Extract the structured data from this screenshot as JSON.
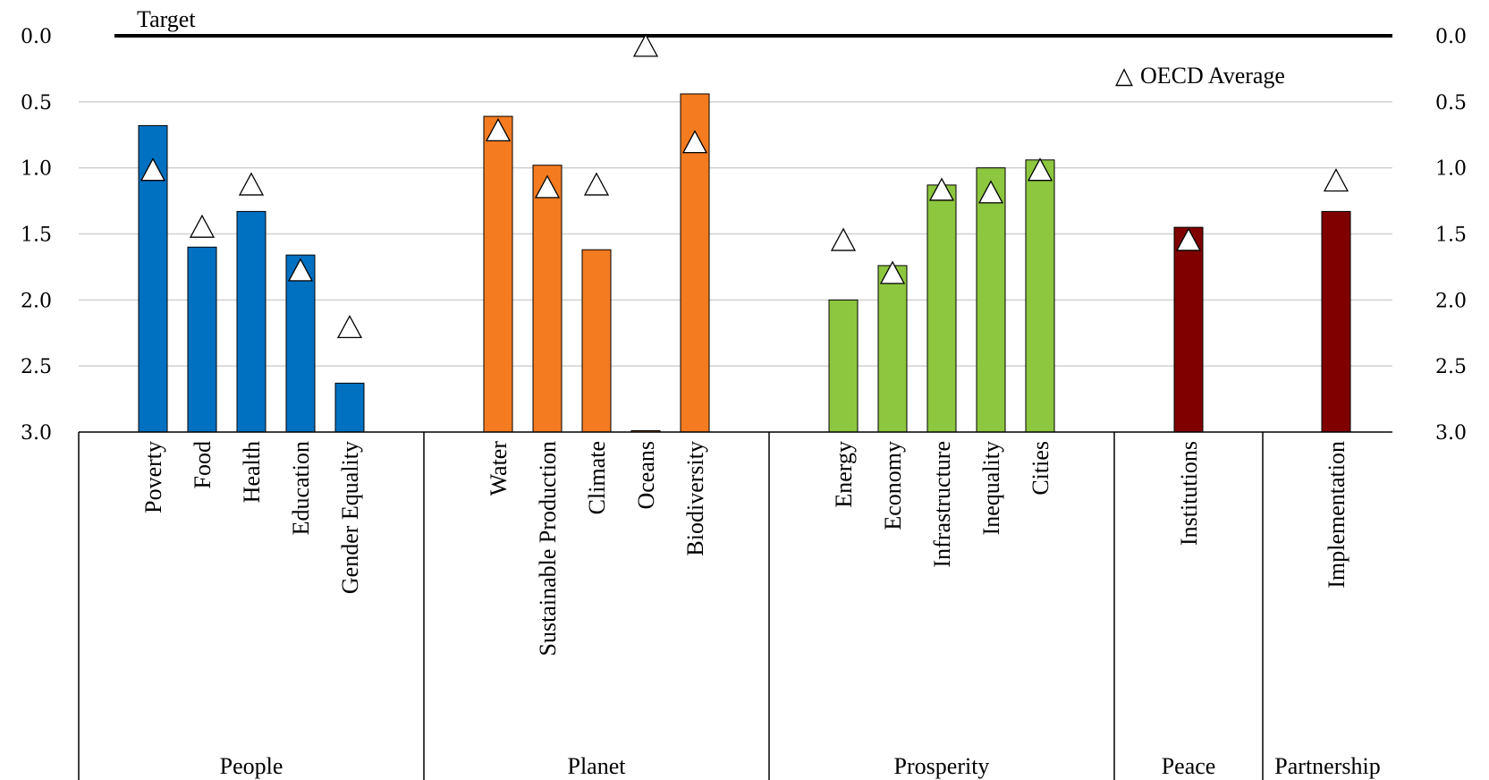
{
  "chart_data": {
    "type": "bar",
    "y_axis": {
      "ylim": [
        0,
        3
      ],
      "inverted": true,
      "ticks": [
        "0.0",
        "0.5",
        "1.0",
        "1.5",
        "2.0",
        "2.5",
        "3.0"
      ],
      "right_axis_mirrored": true,
      "grid": true
    },
    "target_line": {
      "label": "Target",
      "value": 0.0
    },
    "legend": {
      "label": "OECD Average",
      "symbol": "△",
      "position": "top-right"
    },
    "groups": [
      {
        "name": "People",
        "color": "#0070C0",
        "categories": [
          {
            "label": "Poverty",
            "value": 0.68,
            "oecd": 1.02
          },
          {
            "label": "Food",
            "value": 1.6,
            "oecd": 1.45
          },
          {
            "label": "Health",
            "value": 1.33,
            "oecd": 1.13
          },
          {
            "label": "Education",
            "value": 1.66,
            "oecd": 1.78
          },
          {
            "label": "Gender Equality",
            "value": 2.63,
            "oecd": 2.21
          }
        ]
      },
      {
        "name": "Planet",
        "color": "#F47B20",
        "categories": [
          {
            "label": "Water",
            "value": 0.61,
            "oecd": 0.72
          },
          {
            "label": "Sustainable Production",
            "value": 0.98,
            "oecd": 1.15
          },
          {
            "label": "Climate",
            "value": 1.62,
            "oecd": 1.13
          },
          {
            "label": "Oceans",
            "value": 3.0,
            "oecd": 0.08
          },
          {
            "label": "Biodiversity",
            "value": 0.44,
            "oecd": 0.81
          }
        ]
      },
      {
        "name": "Prosperity",
        "color": "#8DC63F",
        "categories": [
          {
            "label": "Energy",
            "value": 2.0,
            "oecd": 1.55
          },
          {
            "label": "Economy",
            "value": 1.74,
            "oecd": 1.8
          },
          {
            "label": "Infrastructure",
            "value": 1.13,
            "oecd": 1.17
          },
          {
            "label": "Inequality",
            "value": 1.0,
            "oecd": 1.19
          },
          {
            "label": "Cities",
            "value": 0.94,
            "oecd": 1.02
          }
        ]
      },
      {
        "name": "Peace",
        "color": "#800000",
        "categories": [
          {
            "label": "Institutions",
            "value": 1.45,
            "oecd": 1.55
          }
        ]
      },
      {
        "name": "Partnership",
        "color": "#800000",
        "categories": [
          {
            "label": "Implementation",
            "value": 1.33,
            "oecd": 1.1
          }
        ]
      }
    ]
  }
}
